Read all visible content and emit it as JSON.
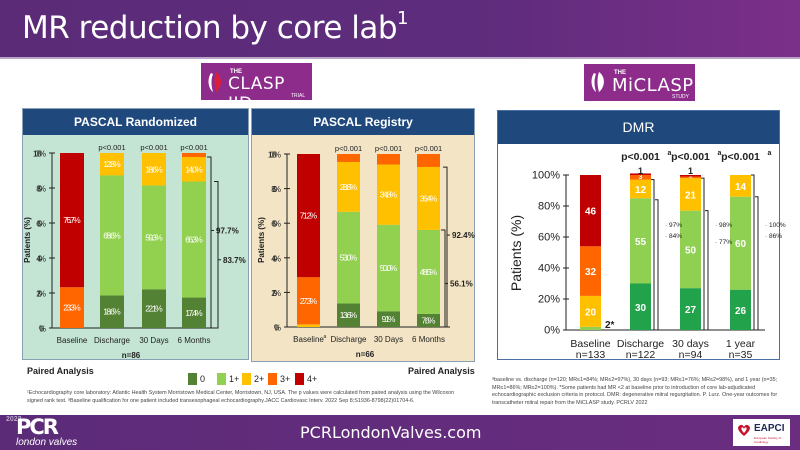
{
  "header": {
    "title": "MR reduction by core lab",
    "title_sup": "1"
  },
  "logos": {
    "clasp": {
      "pre": "THE",
      "name": "CLASP IID",
      "sub": "TRIAL"
    },
    "miclasp": {
      "pre": "THE",
      "name": "MiCLASP",
      "sub": "STUDY"
    }
  },
  "colors": {
    "mr0": "#548235",
    "mr1": "#92d050",
    "mr2": "#ffc000",
    "mr3": "#ff6600",
    "mr4": "#c00000",
    "dmr0": "#22a24a",
    "dmr1": "#8fcf52",
    "dmr2": "#ffc000",
    "dmr3": "#ff6600",
    "dmr4": "#c00000",
    "panel_header": "#1f497d",
    "purple": "#5b2b78"
  },
  "legend": {
    "items": [
      {
        "label": "0",
        "color_key": "mr0"
      },
      {
        "label": "1+",
        "color_key": "mr1"
      },
      {
        "label": "2+",
        "color_key": "mr2"
      },
      {
        "label": "3+",
        "color_key": "mr3"
      },
      {
        "label": "4+",
        "color_key": "mr4"
      }
    ]
  },
  "paired_left": "Paired Analysis",
  "paired_right": "Paired Analysis",
  "chart_data": [
    {
      "type": "bar",
      "stacked": true,
      "title": "PASCAL Randomized",
      "ylabel": "Patients (%)",
      "xlabel": "n=86",
      "ylim": [
        0,
        100
      ],
      "yticks": [
        "0%",
        "20%",
        "40%",
        "60%",
        "80%",
        "100%"
      ],
      "categories": [
        "Baseline",
        "Discharge",
        "30 Days",
        "6 Months"
      ],
      "pvalues": [
        "",
        "p<0.001",
        "p<0.001",
        "p<0.001"
      ],
      "series": [
        {
          "name": "0",
          "color_key": "mr0",
          "values": [
            0,
            18.6,
            22.1,
            17.4
          ],
          "labels": [
            "",
            "18.6%",
            "22.1%",
            "17.4%"
          ]
        },
        {
          "name": "1+",
          "color_key": "mr1",
          "values": [
            0,
            68.6,
            59.3,
            66.3
          ],
          "labels": [
            "",
            "68.6%",
            "59.3%",
            "66.3%"
          ]
        },
        {
          "name": "2+",
          "color_key": "mr2",
          "values": [
            0,
            12.8,
            18.6,
            14.0
          ],
          "labels": [
            "",
            "12.8%",
            "18.6%",
            "14.0%"
          ]
        },
        {
          "name": "3+",
          "color_key": "mr3",
          "values": [
            23.3,
            0,
            0,
            2.3
          ],
          "labels": [
            "23.3%",
            "",
            "",
            ""
          ]
        },
        {
          "name": "4+",
          "color_key": "mr4",
          "values": [
            76.7,
            0,
            0,
            0
          ],
          "labels": [
            "76.7%",
            "",
            "",
            ""
          ]
        }
      ],
      "brackets": [
        {
          "label": "97.7%",
          "from": 0,
          "to": 97.7
        },
        {
          "label": "83.7%",
          "from": 0,
          "to": 83.7
        }
      ]
    },
    {
      "type": "bar",
      "stacked": true,
      "title": "PASCAL Registry",
      "ylabel": "Patients (%)",
      "xlabel": "n=66",
      "ylim": [
        0,
        100
      ],
      "yticks": [
        "0%",
        "20%",
        "40%",
        "60%",
        "80%",
        "100%"
      ],
      "categories": [
        "Baseline",
        "Discharge",
        "30 Days",
        "6 Months"
      ],
      "category_sup": [
        "a",
        "",
        "",
        ""
      ],
      "pvalues": [
        "",
        "p<0.001",
        "p<0.001",
        "p<0.001"
      ],
      "series": [
        {
          "name": "0",
          "color_key": "mr0",
          "values": [
            0,
            13.6,
            9.1,
            7.6
          ],
          "labels": [
            "",
            "13.6%",
            "9.1%",
            "7.6%"
          ]
        },
        {
          "name": "1+",
          "color_key": "mr1",
          "values": [
            0,
            53.0,
            50.0,
            48.5
          ],
          "labels": [
            "",
            "53.0%",
            "50.0%",
            "48.5%"
          ]
        },
        {
          "name": "2+",
          "color_key": "mr2",
          "values": [
            1.5,
            28.8,
            34.8,
            36.4
          ],
          "labels": [
            "",
            "28.8%",
            "34.8%",
            "36.4%"
          ]
        },
        {
          "name": "3+",
          "color_key": "mr3",
          "values": [
            27.3,
            4.6,
            6.1,
            7.5
          ],
          "labels": [
            "27.3%",
            "",
            "",
            ""
          ]
        },
        {
          "name": "4+",
          "color_key": "mr4",
          "values": [
            71.2,
            0,
            0,
            0
          ],
          "labels": [
            "71.2%",
            "",
            "",
            ""
          ]
        }
      ],
      "brackets": [
        {
          "label": "92.4%",
          "from": 0,
          "to": 92.4
        },
        {
          "label": "56.1%",
          "from": 0,
          "to": 56.1
        }
      ]
    },
    {
      "type": "bar",
      "stacked": true,
      "title": "DMR",
      "ylabel": "Patients (%)",
      "ylim": [
        0,
        100
      ],
      "yticks": [
        "0%",
        "20%",
        "40%",
        "60%",
        "80%",
        "100%"
      ],
      "categories": [
        "Baseline",
        "Discharge",
        "30 days",
        "1 year"
      ],
      "category_n": [
        "n=133",
        "n=122",
        "n=94",
        "n=35"
      ],
      "pvalues": [
        "",
        "p<0.001",
        "p<0.001",
        "p<0.001"
      ],
      "pvalue_sup": "a",
      "series": [
        {
          "name": "0",
          "color_key": "dmr0",
          "values": [
            0,
            30,
            27,
            26
          ],
          "labels": [
            "",
            "30",
            "27",
            "26"
          ]
        },
        {
          "name": "1+",
          "color_key": "dmr1",
          "values": [
            2,
            55,
            50,
            60
          ],
          "labels": [
            "",
            "55",
            "50",
            "60"
          ]
        },
        {
          "name": "2+",
          "color_key": "dmr2",
          "values": [
            20,
            12,
            21,
            14
          ],
          "labels": [
            "20",
            "12",
            "21",
            "14"
          ]
        },
        {
          "name": "3+",
          "color_key": "dmr3",
          "values": [
            32,
            3,
            1,
            0
          ],
          "labels": [
            "32",
            "3",
            "1",
            ""
          ]
        },
        {
          "name": "4+",
          "color_key": "dmr4",
          "values": [
            46,
            1,
            1,
            0
          ],
          "labels": [
            "46",
            "",
            "",
            ""
          ]
        }
      ],
      "top_labels": [
        "",
        "1",
        "1",
        ""
      ],
      "baseline_note": "2*",
      "brackets": [
        [
          {
            "label": "97%",
            "to": 97
          },
          {
            "label": "84%",
            "to": 84
          }
        ],
        [
          {
            "label": "98%",
            "to": 98
          },
          {
            "label": "77%",
            "to": 77
          }
        ],
        [
          {
            "label": "100%",
            "to": 100
          },
          {
            "label": "86%",
            "to": 86
          }
        ]
      ]
    }
  ],
  "footnotes": {
    "left": "¹Echocardiography core laboratory: Atlantic Health System Morristown Medical Center, Morristown, NJ, USA. The p values were calculated from paired analysis using the Wilcoxon signed rank test. ᵃBaseline qualification for one patient included transesophageal echocardiography.JACC Cardiovasc Interv. 2022 Sep 8;S1936-8798(22)01704-6.",
    "right": "ᵃbaseline vs. discharge (n=120; MR≤1=84%; MR≤2=97%), 30 days (n=93; MR≤1=76%; MR≤2=98%), and 1 year (n=35; MR≤1=86%; MR≤2=100%). *Some patients had MR <2 at baseline prior to introduction of core lab-adjudicated echocardiographic exclusion criteria in protocol. DMR: degenerative mitral regurgitation. P. Lurz. One-year outcomes for transcatheter mitral repair from the MiCLASP study. PCRLV 2022"
  },
  "footer": {
    "url": "PCRLondonValves.com",
    "pcr_year": "2022",
    "pcr_name": "PCR",
    "pcr_sub": "london valves",
    "eapci": "EAPCI",
    "eapci_sub": "European Society of Cardiology"
  }
}
